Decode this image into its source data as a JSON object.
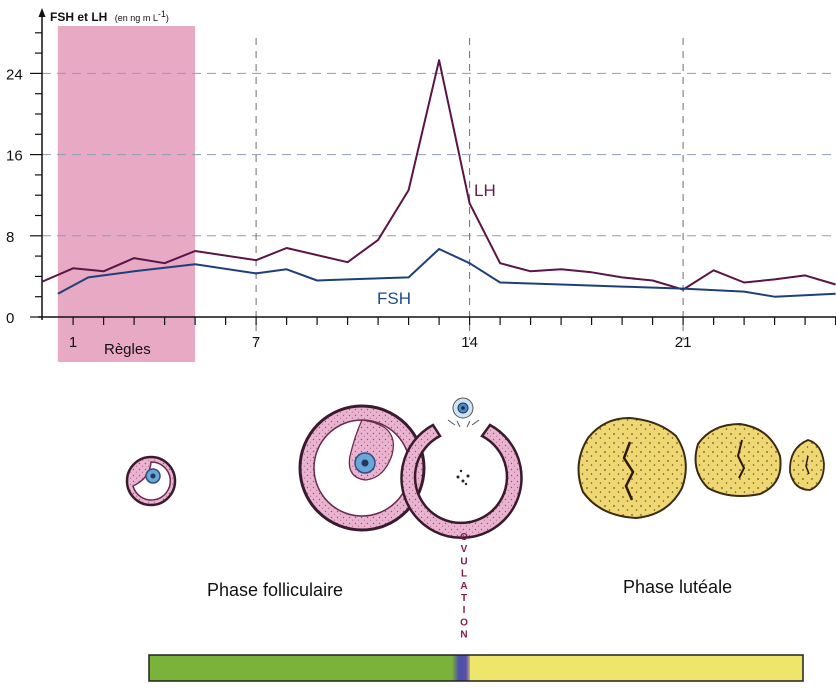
{
  "chart_data": {
    "type": "line",
    "title": "",
    "ylabel": "FSH et LH",
    "ylabel_unit_prefix": "(en ng m L",
    "ylabel_unit_exp": "-1",
    "ylabel_unit_suffix": ")",
    "xlabel": "",
    "ylim": [
      0,
      28
    ],
    "xlim": [
      0,
      28
    ],
    "y_ticks": [
      0,
      8,
      16,
      24
    ],
    "y_tick_labels": [
      "0",
      "8",
      "16",
      "24"
    ],
    "x_tick_labels": [
      {
        "value": 1,
        "label": "1"
      },
      {
        "value": 7,
        "label": "7"
      },
      {
        "value": 14,
        "label": "14"
      },
      {
        "value": 21,
        "label": "21"
      }
    ],
    "grid": "dashed",
    "shaded_region": {
      "from": 0.5,
      "to": 5,
      "label": "Règles",
      "color": "#e8a9c4"
    },
    "series": [
      {
        "name": "LH",
        "color": "#5a1446",
        "x": [
          0,
          1,
          2,
          3,
          4,
          5,
          7,
          8,
          10,
          11,
          12,
          13,
          14,
          15,
          16,
          17,
          18,
          19,
          20,
          21,
          22,
          23,
          24,
          25,
          26
        ],
        "y": [
          3.5,
          4.8,
          4.5,
          5.8,
          5.3,
          6.5,
          5.6,
          6.8,
          5.4,
          7.6,
          12.5,
          25.3,
          11.2,
          5.3,
          4.5,
          4.7,
          4.4,
          3.9,
          3.6,
          2.7,
          4.6,
          3.4,
          3.7,
          4.1,
          3.2
        ]
      },
      {
        "name": "FSH",
        "color": "#1f3f7a",
        "x": [
          0.5,
          1.5,
          3,
          5,
          7,
          8,
          9,
          10,
          12,
          13,
          14,
          15,
          17,
          19,
          21,
          23,
          24,
          26
        ],
        "y": [
          2.3,
          3.9,
          4.5,
          5.2,
          4.3,
          4.7,
          3.6,
          3.7,
          3.9,
          6.7,
          5.3,
          3.4,
          3.2,
          3.0,
          2.8,
          2.5,
          2.0,
          2.3
        ]
      }
    ]
  },
  "ovary": {
    "phase_follicular_label": "Phase folliculaire",
    "phase_luteal_label": "Phase lutéale",
    "ovulation_label": "OVULATION",
    "bar_colors": {
      "follicular": "#7bb23a",
      "ovulation": "#4a4faa",
      "luteal": "#eee66a"
    }
  }
}
